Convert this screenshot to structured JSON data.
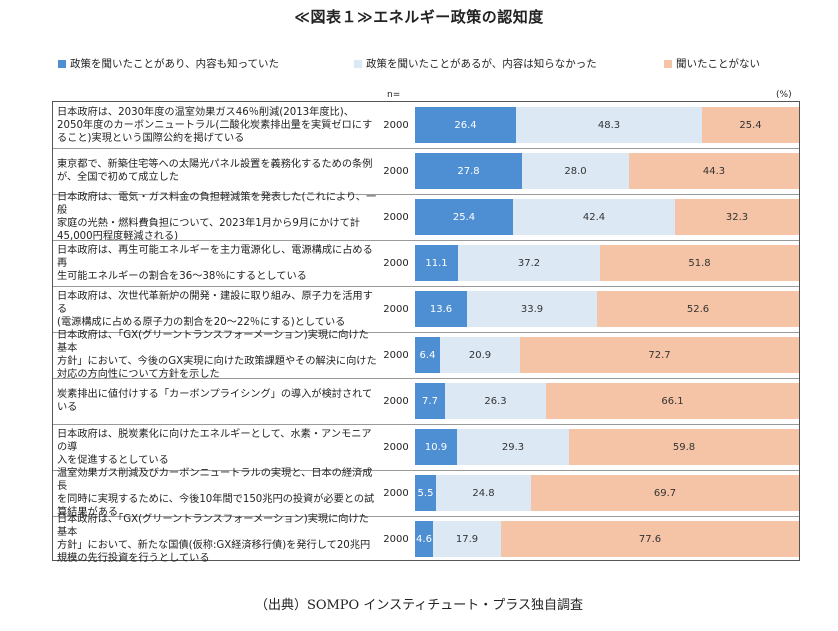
{
  "title": "≪図表１≫エネルギー政策の認知度",
  "legend": [
    {
      "label": "政策を聞いたことがあり、内容も知っていた",
      "color": "#4e8fd3"
    },
    {
      "label": "政策を聞いたことがあるが、内容は知らなかった",
      "color": "#dde8f5"
    },
    {
      "label": "聞いたことがない",
      "color": "#f5c4a6"
    }
  ],
  "n_header": "n=",
  "percent_unit": "(%)",
  "source": "（出典）SOMPO インスティチュート・プラス独自調査",
  "chart_data": {
    "type": "bar",
    "orientation": "horizontal",
    "stacked": true,
    "title": "≪図表１≫エネルギー政策の認知度",
    "unit": "(%)",
    "xlim": [
      0,
      100
    ],
    "categories": [
      "日本政府は、2030年度の温室効果ガス46%削減(2013年度比)、2050年度のカーボンニュートラル(二酸化炭素排出量を実質ゼロにすること)実現という国際公約を掲げている",
      "東京都で、新築住宅等への太陽光パネル設置を義務化するための条例が、全国で初めて成立した",
      "日本政府は、電気・ガス料金の負担軽減策を発表した(これにより、一般家庭の光熱・燃料費負担について、2023年1月から9月にかけて計45,000円程度軽減される)",
      "日本政府は、再生可能エネルギーを主力電源化し、電源構成に占める再生可能エネルギーの割合を36～38%にするとしている",
      "日本政府は、次世代革新炉の開発・建設に取り組み、原子力を活用する(電源構成に占める原子力の割合を20～22%にする)としている",
      "日本政府は、「GX(グリーントランスフォーメーション)実現に向けた基本方針」において、今後のGX実現に向けた政策課題やその解決に向けた対応の方向性について方針を示した",
      "炭素排出に値付けする「カーボンプライシング」の導入が検討されている",
      "日本政府は、脱炭素化に向けたエネルギーとして、水素・アンモニアの導入を促進するとしている",
      "温室効果ガス削減及びカーボンニュートラルの実現と、日本の経済成長を同時に実現するために、今後10年間で150兆円の投資が必要との試算結果がある",
      "日本政府は、「GX(グリーントランスフォーメーション)実現に向けた基本方針」において、新たな国債(仮称:GX経済移行債)を発行して20兆円規模の先行投資を行うとしている"
    ],
    "label_lines": [
      [
        "日本政府は、2030年度の温室効果ガス46％削減(2013年度比)、",
        "2050年度のカーボンニュートラル(二酸化炭素排出量を実質ゼロにす",
        "ること)実現という国際公約を掲げている"
      ],
      [
        "東京都で、新築住宅等への太陽光パネル設置を義務化するための条例",
        "が、全国で初めて成立した"
      ],
      [
        "日本政府は、電気・ガス料金の負担軽減策を発表した(これにより、一般",
        "家庭の光熱・燃料費負担について、2023年1月から9月にかけて計",
        "45,000円程度軽減される)"
      ],
      [
        "日本政府は、再生可能エネルギーを主力電源化し、電源構成に占める再",
        "生可能エネルギーの割合を36～38％にするとしている"
      ],
      [
        "日本政府は、次世代革新炉の開発・建設に取り組み、原子力を活用する",
        "(電源構成に占める原子力の割合を20～22％にする)としている"
      ],
      [
        "日本政府は、「GX(グリーントランスフォーメーション)実現に向けた基本",
        "方針」において、今後のGX実現に向けた政策課題やその解決に向けた",
        "対応の方向性について方針を示した"
      ],
      [
        "炭素排出に値付けする「カーボンプライシング」の導入が検討されている"
      ],
      [
        "日本政府は、脱炭素化に向けたエネルギーとして、水素・アンモニアの導",
        "入を促進するとしている"
      ],
      [
        "温室効果ガス削減及びカーボンニュートラルの実現と、日本の経済成長",
        "を同時に実現するために、今後10年間で150兆円の投資が必要との試",
        "算結果がある"
      ],
      [
        "日本政府は、「GX(グリーントランスフォーメーション)実現に向けた基本",
        "方針」において、新たな国債(仮称:GX経済移行債)を発行して20兆円",
        "規模の先行投資を行うとしている"
      ]
    ],
    "n": [
      "2000",
      "2000",
      "2000",
      "2000",
      "2000",
      "2000",
      "2000",
      "2000",
      "2000",
      "2000"
    ],
    "series": [
      {
        "name": "政策を聞いたことがあり、内容も知っていた",
        "color": "#4e8fd3",
        "values": [
          26.4,
          27.8,
          25.4,
          11.1,
          13.6,
          6.4,
          7.7,
          10.9,
          5.5,
          4.6
        ]
      },
      {
        "name": "政策を聞いたことがあるが、内容は知らなかった",
        "color": "#dde8f5",
        "values": [
          48.3,
          28.0,
          42.4,
          37.2,
          33.9,
          20.9,
          26.3,
          29.3,
          24.8,
          17.9
        ]
      },
      {
        "name": "聞いたことがない",
        "color": "#f5c4a6",
        "values": [
          25.4,
          44.3,
          32.3,
          51.8,
          52.6,
          72.7,
          66.1,
          59.8,
          69.7,
          77.6
        ]
      }
    ]
  }
}
